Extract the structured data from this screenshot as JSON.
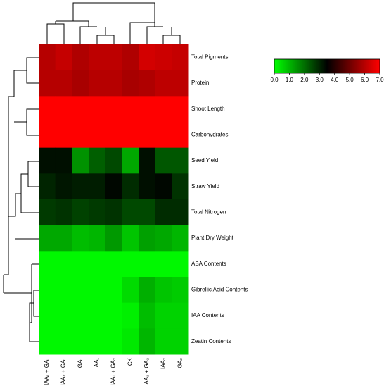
{
  "chart_data": {
    "type": "heatmap",
    "columns": [
      "IAA₁ + GA₁",
      "IAA₂ + GA₁",
      "GA₁",
      "IAA₁",
      "IAA₁ + GA₂",
      "CK",
      "IAA₂ + GA₂",
      "IAA₂",
      "GA₂"
    ],
    "rows": [
      "Total Pigments",
      "Protein",
      "Shoot Length",
      "Carbohydrates",
      "Seed Yield",
      "Straw Yield",
      "Total Nitrogen",
      "Plant Dry Weight",
      "ABA Contents",
      "Gibrellic Acid Contents",
      "IAA Contents",
      "Zeatin Contents"
    ],
    "values": [
      [
        6.0,
        6.2,
        5.9,
        6.1,
        6.1,
        5.9,
        6.4,
        6.3,
        6.2
      ],
      [
        6.0,
        6.0,
        5.8,
        6.0,
        6.0,
        5.8,
        5.9,
        6.1,
        6.1
      ],
      [
        7.0,
        7.0,
        7.0,
        7.0,
        7.0,
        7.0,
        7.0,
        7.0,
        7.0
      ],
      [
        7.0,
        7.0,
        7.0,
        7.0,
        7.0,
        7.0,
        7.0,
        7.0,
        7.0
      ],
      [
        3.3,
        3.3,
        1.5,
        2.2,
        2.5,
        1.2,
        3.3,
        2.3,
        2.3
      ],
      [
        3.0,
        3.2,
        3.1,
        3.1,
        3.4,
        2.9,
        3.3,
        3.4,
        2.8
      ],
      [
        2.7,
        2.8,
        2.6,
        2.7,
        2.8,
        2.5,
        2.5,
        2.9,
        2.9
      ],
      [
        1.2,
        1.2,
        0.9,
        1.0,
        1.4,
        0.8,
        1.3,
        1.2,
        1.0
      ],
      [
        0.1,
        0.1,
        0.1,
        0.1,
        0.1,
        0.1,
        0.1,
        0.1,
        0.1
      ],
      [
        0.1,
        0.1,
        0.1,
        0.1,
        0.1,
        0.5,
        1.1,
        0.8,
        0.7
      ],
      [
        0.1,
        0.1,
        0.1,
        0.1,
        0.1,
        0.2,
        0.9,
        0.6,
        0.6
      ],
      [
        0.1,
        0.1,
        0.1,
        0.1,
        0.1,
        0.3,
        1.0,
        0.6,
        0.6
      ]
    ],
    "colors": [
      "#00ff00",
      "#000000",
      "#ff0000"
    ],
    "clim": [
      0,
      7
    ],
    "cticks": [
      {
        "value": 0,
        "label": "0.0"
      },
      {
        "value": 1,
        "label": "1.0"
      },
      {
        "value": 2,
        "label": "2.0"
      },
      {
        "value": 3,
        "label": "3.0"
      },
      {
        "value": 4,
        "label": "4.0"
      },
      {
        "value": 5,
        "label": "5.0"
      },
      {
        "value": 6,
        "label": "6.0"
      },
      {
        "value": 7,
        "label": "7.0"
      }
    ]
  }
}
